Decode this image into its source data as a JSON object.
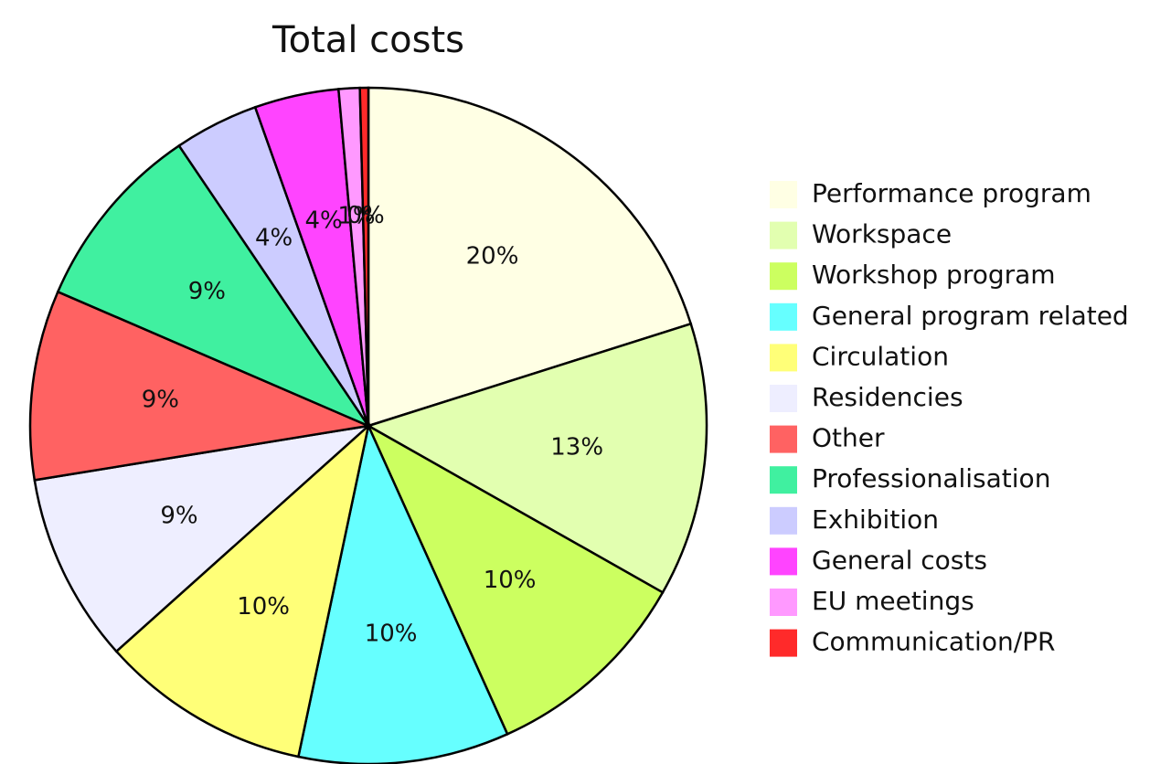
{
  "chart_data": {
    "type": "pie",
    "title": "Total costs",
    "categories": [
      "Performance program",
      "Workspace",
      "Workshop program",
      "General program related",
      "Circulation",
      "Residencies",
      "Other",
      "Professionalisation",
      "Exhibition",
      "General costs",
      "EU meetings",
      "Communication/PR"
    ],
    "values": [
      20,
      13,
      10,
      10,
      10,
      9,
      9,
      9,
      4,
      4,
      1,
      0.4
    ],
    "value_labels": [
      "20%",
      "13%",
      "10%",
      "10%",
      "10%",
      "9%",
      "9%",
      "9%",
      "4%",
      "4%",
      "1%",
      "0%"
    ],
    "colors": [
      "#ffffe4",
      "#e2ffb0",
      "#ccff60",
      "#66ffff",
      "#ffff78",
      "#eeeeff",
      "#ff6262",
      "#40f0a0",
      "#ccccff",
      "#ff44ff",
      "#ff99ff",
      "#ff2a2a"
    ],
    "legend": "right"
  }
}
